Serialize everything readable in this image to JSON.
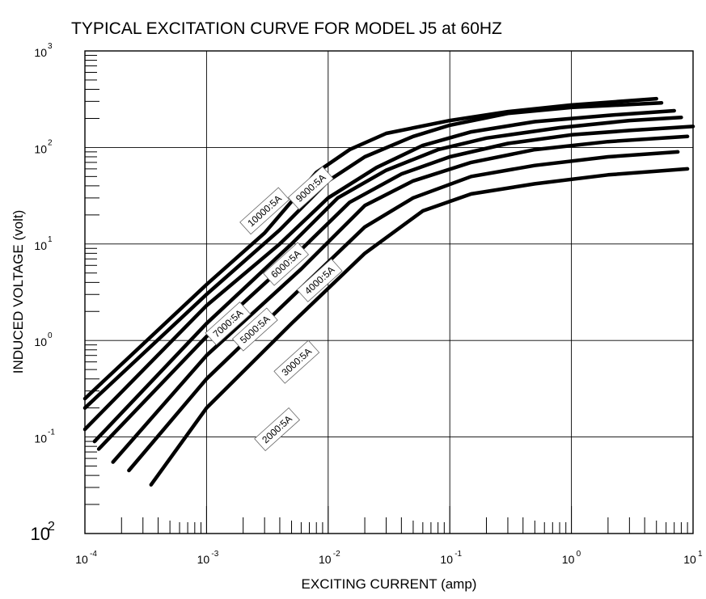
{
  "chart_data": {
    "type": "line",
    "title": "TYPICAL EXCITATION CURVE FOR   MODEL J5 at 60HZ",
    "xlabel": "EXCITING CURRENT (amp)",
    "ylabel": "INDUCED VOLTAGE (volt)",
    "xscale": "log",
    "yscale": "log",
    "xlim": [
      0.0001,
      10
    ],
    "ylim": [
      0.01,
      1000
    ],
    "grid": true,
    "x_ticks": [
      {
        "base": "10",
        "exp": "-4",
        "value": 0.0001
      },
      {
        "base": "10",
        "exp": "-3",
        "value": 0.001
      },
      {
        "base": "10",
        "exp": "-2",
        "value": 0.01
      },
      {
        "base": "10",
        "exp": "-1",
        "value": 0.1
      },
      {
        "base": "10",
        "exp": "0",
        "value": 1
      },
      {
        "base": "10",
        "exp": "1",
        "value": 10
      }
    ],
    "y_ticks": [
      {
        "base": "10",
        "exp": "3",
        "value": 1000
      },
      {
        "base": "10",
        "exp": "2",
        "value": 100
      },
      {
        "base": "10",
        "exp": "1",
        "value": 10
      },
      {
        "base": "10",
        "exp": "0",
        "value": 1
      },
      {
        "base": "10",
        "exp": "-1",
        "value": 0.1
      }
    ],
    "y_bottom_label": {
      "base": "10",
      "exp": "2"
    },
    "series": [
      {
        "name": "10000:5A",
        "x": [
          0.0001,
          0.001,
          0.003,
          0.008,
          0.015,
          0.03,
          0.1,
          0.3,
          1,
          5
        ],
        "y": [
          0.25,
          3.8,
          13,
          55,
          95,
          140,
          190,
          235,
          275,
          320
        ]
      },
      {
        "name": "9000:5A",
        "x": [
          0.0001,
          0.001,
          0.004,
          0.01,
          0.02,
          0.05,
          0.1,
          0.3,
          1,
          5.5
        ],
        "y": [
          0.2,
          3,
          14,
          45,
          80,
          130,
          170,
          225,
          260,
          290
        ]
      },
      {
        "name": "7000:5A",
        "x": [
          0.0001,
          0.001,
          0.004,
          0.01,
          0.025,
          0.06,
          0.15,
          0.5,
          2,
          7
        ],
        "y": [
          0.12,
          2.3,
          10,
          30,
          62,
          105,
          145,
          185,
          215,
          240
        ]
      },
      {
        "name": "6000:5A",
        "x": [
          0.00012,
          0.001,
          0.005,
          0.012,
          0.03,
          0.08,
          0.2,
          0.8,
          3,
          8
        ],
        "y": [
          0.09,
          1.5,
          10,
          30,
          58,
          95,
          125,
          160,
          190,
          205
        ]
      },
      {
        "name": "5000:5A",
        "x": [
          0.00013,
          0.001,
          0.005,
          0.015,
          0.04,
          0.1,
          0.3,
          1,
          3,
          10
        ],
        "y": [
          0.075,
          1.1,
          7,
          27,
          53,
          80,
          110,
          135,
          150,
          165
        ]
      },
      {
        "name": "4000:5A",
        "x": [
          0.00017,
          0.001,
          0.006,
          0.02,
          0.05,
          0.15,
          0.5,
          2,
          9
        ],
        "y": [
          0.055,
          0.7,
          5.5,
          25,
          45,
          70,
          95,
          115,
          130
        ]
      },
      {
        "name": "3000:5A",
        "x": [
          0.00023,
          0.001,
          0.006,
          0.02,
          0.05,
          0.15,
          0.5,
          2,
          7.5
        ],
        "y": [
          0.045,
          0.4,
          3.5,
          15,
          30,
          50,
          65,
          80,
          90
        ]
      },
      {
        "name": "2000:5A",
        "x": [
          0.00035,
          0.001,
          0.005,
          0.02,
          0.06,
          0.15,
          0.5,
          2,
          9
        ],
        "y": [
          0.032,
          0.2,
          1.5,
          8,
          22,
          33,
          42,
          52,
          60
        ]
      }
    ]
  }
}
